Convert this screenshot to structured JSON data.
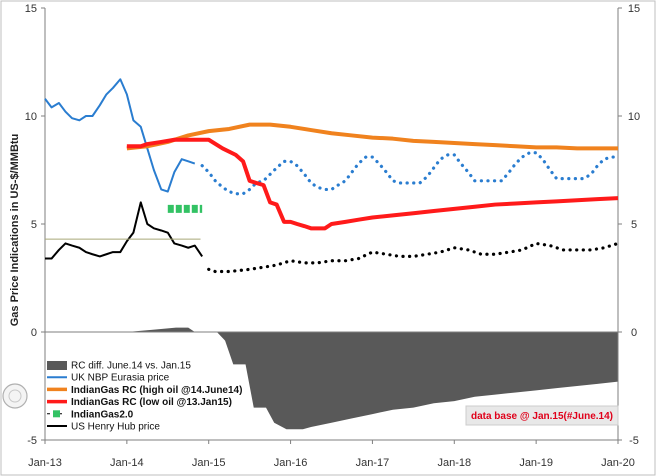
{
  "chart_data": {
    "type": "line",
    "title": "",
    "xlabel": "",
    "ylabel": "Gas Price Indications in US-$/MMBtu",
    "ylim": [
      -5,
      15
    ],
    "x_ticks": [
      "Jan-13",
      "Jan-14",
      "Jan-15",
      "Jan-16",
      "Jan-17",
      "Jan-18",
      "Jan-19",
      "Jan-20"
    ],
    "y_ticks": [
      -5,
      0,
      5,
      10,
      15
    ],
    "y_ticks_right": [
      -5,
      0,
      5,
      10,
      15
    ],
    "grid": false,
    "legend_position": "bottom-left",
    "note": "data base @ Jan.15(#June.14)",
    "series": [
      {
        "name": "RC diff. June.14 vs. Jan.15",
        "type": "area",
        "color": "#595959",
        "points": [
          [
            2014.0,
            0
          ],
          [
            2014.3,
            0.1
          ],
          [
            2014.6,
            0.2
          ],
          [
            2014.75,
            0.2
          ],
          [
            2014.83,
            0
          ],
          [
            2015.1,
            0
          ],
          [
            2015.2,
            -0.4
          ],
          [
            2015.3,
            -1.5
          ],
          [
            2015.45,
            -1.5
          ],
          [
            2015.55,
            -3.5
          ],
          [
            2015.7,
            -3.5
          ],
          [
            2015.8,
            -4.2
          ],
          [
            2015.95,
            -4.5
          ],
          [
            2016.15,
            -4.5
          ],
          [
            2016.25,
            -4.4
          ],
          [
            2016.5,
            -4.2
          ],
          [
            2016.75,
            -4.0
          ],
          [
            2017.0,
            -3.8
          ],
          [
            2017.25,
            -3.6
          ],
          [
            2017.5,
            -3.5
          ],
          [
            2017.75,
            -3.3
          ],
          [
            2018.0,
            -3.2
          ],
          [
            2018.25,
            -3.0
          ],
          [
            2018.5,
            -2.9
          ],
          [
            2018.75,
            -2.8
          ],
          [
            2019.0,
            -2.7
          ],
          [
            2019.25,
            -2.6
          ],
          [
            2019.5,
            -2.5
          ],
          [
            2019.75,
            -2.4
          ],
          [
            2020.0,
            -2.3
          ]
        ]
      },
      {
        "name": "UK NBP Eurasia price",
        "type": "line",
        "color": "#2a7dd0",
        "points": [
          [
            2013.0,
            10.8
          ],
          [
            2013.08,
            10.4
          ],
          [
            2013.17,
            10.6
          ],
          [
            2013.25,
            10.2
          ],
          [
            2013.33,
            9.9
          ],
          [
            2013.42,
            9.8
          ],
          [
            2013.5,
            10.0
          ],
          [
            2013.58,
            10.0
          ],
          [
            2013.67,
            10.5
          ],
          [
            2013.75,
            11.0
          ],
          [
            2013.83,
            11.3
          ],
          [
            2013.92,
            11.7
          ],
          [
            2014.0,
            11.0
          ],
          [
            2014.08,
            9.8
          ],
          [
            2014.17,
            9.5
          ],
          [
            2014.25,
            8.5
          ],
          [
            2014.33,
            7.5
          ],
          [
            2014.42,
            6.6
          ],
          [
            2014.5,
            6.5
          ],
          [
            2014.58,
            7.4
          ],
          [
            2014.67,
            8.0
          ],
          [
            2014.75,
            7.9
          ],
          [
            2014.83,
            7.8
          ]
        ]
      },
      {
        "name": "UK NBP Eurasia price forward",
        "type": "dotted",
        "color": "#2a7dd0",
        "points": [
          [
            2014.92,
            7.7
          ],
          [
            2015.0,
            7.4
          ],
          [
            2015.08,
            7.0
          ],
          [
            2015.17,
            6.7
          ],
          [
            2015.25,
            6.5
          ],
          [
            2015.33,
            6.4
          ],
          [
            2015.42,
            6.4
          ],
          [
            2015.5,
            6.6
          ],
          [
            2015.58,
            6.9
          ],
          [
            2015.67,
            7.0
          ],
          [
            2015.75,
            7.3
          ],
          [
            2015.83,
            7.6
          ],
          [
            2015.92,
            7.9
          ],
          [
            2016.0,
            7.9
          ],
          [
            2016.08,
            7.7
          ],
          [
            2016.17,
            7.3
          ],
          [
            2016.25,
            6.9
          ],
          [
            2016.33,
            6.7
          ],
          [
            2016.42,
            6.6
          ],
          [
            2016.5,
            6.6
          ],
          [
            2016.58,
            6.8
          ],
          [
            2016.67,
            7.0
          ],
          [
            2016.75,
            7.4
          ],
          [
            2016.83,
            7.8
          ],
          [
            2016.92,
            8.1
          ],
          [
            2017.0,
            8.1
          ],
          [
            2017.08,
            7.8
          ],
          [
            2017.17,
            7.4
          ],
          [
            2017.25,
            7.0
          ],
          [
            2017.33,
            6.9
          ],
          [
            2017.42,
            6.9
          ],
          [
            2017.5,
            6.9
          ],
          [
            2017.58,
            6.9
          ],
          [
            2017.67,
            7.2
          ],
          [
            2017.75,
            7.6
          ],
          [
            2017.83,
            8.0
          ],
          [
            2017.92,
            8.2
          ],
          [
            2018.0,
            8.2
          ],
          [
            2018.08,
            7.8
          ],
          [
            2018.17,
            7.4
          ],
          [
            2018.25,
            7.0
          ],
          [
            2018.33,
            7.0
          ],
          [
            2018.42,
            7.0
          ],
          [
            2018.5,
            7.0
          ],
          [
            2018.58,
            7.0
          ],
          [
            2018.67,
            7.4
          ],
          [
            2018.75,
            7.8
          ],
          [
            2018.83,
            8.1
          ],
          [
            2018.92,
            8.3
          ],
          [
            2019.0,
            8.3
          ],
          [
            2019.08,
            8.0
          ],
          [
            2019.17,
            7.5
          ],
          [
            2019.25,
            7.1
          ],
          [
            2019.33,
            7.1
          ],
          [
            2019.42,
            7.1
          ],
          [
            2019.5,
            7.1
          ],
          [
            2019.58,
            7.1
          ],
          [
            2019.67,
            7.3
          ],
          [
            2019.75,
            7.7
          ],
          [
            2019.83,
            8.0
          ],
          [
            2019.92,
            8.1
          ],
          [
            2020.0,
            8.1
          ]
        ]
      },
      {
        "name": "IndianGas RC (high oil @14.June14)",
        "type": "line",
        "color": "#f0821e",
        "points": [
          [
            2014.0,
            8.5
          ],
          [
            2014.25,
            8.6
          ],
          [
            2014.5,
            8.8
          ],
          [
            2014.75,
            9.1
          ],
          [
            2015.0,
            9.3
          ],
          [
            2015.25,
            9.4
          ],
          [
            2015.5,
            9.6
          ],
          [
            2015.75,
            9.6
          ],
          [
            2016.0,
            9.5
          ],
          [
            2016.25,
            9.35
          ],
          [
            2016.5,
            9.2
          ],
          [
            2016.75,
            9.1
          ],
          [
            2017.0,
            9.0
          ],
          [
            2017.25,
            8.95
          ],
          [
            2017.5,
            8.85
          ],
          [
            2017.75,
            8.8
          ],
          [
            2018.0,
            8.75
          ],
          [
            2018.25,
            8.7
          ],
          [
            2018.5,
            8.65
          ],
          [
            2018.75,
            8.6
          ],
          [
            2019.0,
            8.55
          ],
          [
            2019.25,
            8.55
          ],
          [
            2019.5,
            8.5
          ],
          [
            2019.75,
            8.5
          ],
          [
            2020.0,
            8.5
          ]
        ]
      },
      {
        "name": "IndianGas RC (low oil @13.Jan15)",
        "type": "line",
        "color": "#ff1a1a",
        "points": [
          [
            2014.0,
            8.6
          ],
          [
            2014.17,
            8.6
          ],
          [
            2014.25,
            8.7
          ],
          [
            2014.42,
            8.8
          ],
          [
            2014.58,
            8.9
          ],
          [
            2014.75,
            8.9
          ],
          [
            2014.92,
            8.9
          ],
          [
            2015.0,
            8.9
          ],
          [
            2015.17,
            8.5
          ],
          [
            2015.33,
            8.2
          ],
          [
            2015.42,
            7.9
          ],
          [
            2015.5,
            7.0
          ],
          [
            2015.58,
            6.9
          ],
          [
            2015.67,
            6.8
          ],
          [
            2015.75,
            6.0
          ],
          [
            2015.83,
            5.9
          ],
          [
            2015.92,
            5.1
          ],
          [
            2016.0,
            5.1
          ],
          [
            2016.08,
            5.0
          ],
          [
            2016.17,
            4.9
          ],
          [
            2016.25,
            4.8
          ],
          [
            2016.42,
            4.8
          ],
          [
            2016.5,
            5.0
          ],
          [
            2016.67,
            5.1
          ],
          [
            2016.83,
            5.2
          ],
          [
            2017.0,
            5.3
          ],
          [
            2017.25,
            5.4
          ],
          [
            2017.5,
            5.5
          ],
          [
            2017.75,
            5.6
          ],
          [
            2018.0,
            5.7
          ],
          [
            2018.25,
            5.8
          ],
          [
            2018.5,
            5.9
          ],
          [
            2018.75,
            5.95
          ],
          [
            2019.0,
            6.0
          ],
          [
            2019.25,
            6.05
          ],
          [
            2019.5,
            6.1
          ],
          [
            2019.75,
            6.15
          ],
          [
            2020.0,
            6.2
          ]
        ]
      },
      {
        "name": "IndianGas2.0",
        "type": "line",
        "color": "#33c264",
        "points": [
          [
            2014.5,
            5.7
          ],
          [
            2014.92,
            5.7
          ]
        ]
      },
      {
        "name": "US Henry Hub price",
        "type": "line",
        "color": "#000000",
        "points": [
          [
            2013.0,
            3.4
          ],
          [
            2013.08,
            3.4
          ],
          [
            2013.17,
            3.8
          ],
          [
            2013.25,
            4.1
          ],
          [
            2013.33,
            4.0
          ],
          [
            2013.42,
            3.9
          ],
          [
            2013.5,
            3.7
          ],
          [
            2013.58,
            3.6
          ],
          [
            2013.67,
            3.5
          ],
          [
            2013.75,
            3.6
          ],
          [
            2013.83,
            3.7
          ],
          [
            2013.92,
            3.7
          ],
          [
            2014.0,
            4.2
          ],
          [
            2014.08,
            4.6
          ],
          [
            2014.17,
            6.0
          ],
          [
            2014.25,
            5.0
          ],
          [
            2014.33,
            4.8
          ],
          [
            2014.42,
            4.7
          ],
          [
            2014.5,
            4.6
          ],
          [
            2014.58,
            4.1
          ],
          [
            2014.67,
            4.0
          ],
          [
            2014.75,
            3.9
          ],
          [
            2014.83,
            4.0
          ],
          [
            2014.92,
            3.5
          ]
        ]
      },
      {
        "name": "US Henry Hub price forward",
        "type": "dotted",
        "color": "#000000",
        "points": [
          [
            2015.0,
            2.9
          ],
          [
            2015.08,
            2.8
          ],
          [
            2015.25,
            2.8
          ],
          [
            2015.5,
            2.9
          ],
          [
            2015.67,
            3.0
          ],
          [
            2015.83,
            3.1
          ],
          [
            2016.0,
            3.3
          ],
          [
            2016.17,
            3.2
          ],
          [
            2016.33,
            3.2
          ],
          [
            2016.5,
            3.3
          ],
          [
            2016.67,
            3.3
          ],
          [
            2016.83,
            3.4
          ],
          [
            2017.0,
            3.7
          ],
          [
            2017.17,
            3.6
          ],
          [
            2017.33,
            3.5
          ],
          [
            2017.5,
            3.5
          ],
          [
            2017.67,
            3.6
          ],
          [
            2017.83,
            3.7
          ],
          [
            2018.0,
            3.9
          ],
          [
            2018.17,
            3.8
          ],
          [
            2018.33,
            3.6
          ],
          [
            2018.5,
            3.6
          ],
          [
            2018.67,
            3.7
          ],
          [
            2018.83,
            3.8
          ],
          [
            2019.0,
            4.1
          ],
          [
            2019.17,
            4.0
          ],
          [
            2019.33,
            3.8
          ],
          [
            2019.5,
            3.8
          ],
          [
            2019.67,
            3.8
          ],
          [
            2019.83,
            3.9
          ],
          [
            2020.0,
            4.1
          ]
        ]
      },
      {
        "name": "Henry Hub average",
        "type": "thin",
        "color": "#a8a878",
        "points": [
          [
            2013.0,
            4.3
          ],
          [
            2014.9,
            4.3
          ]
        ]
      }
    ]
  },
  "legend": [
    {
      "label": "RC diff. June.14 vs. Jan.15",
      "kind": "box",
      "color": "#595959",
      "bold": false
    },
    {
      "label": "UK NBP Eurasia price",
      "kind": "line",
      "color": "#2a7dd0",
      "bold": false
    },
    {
      "label": "IndianGas RC (high oil @14.June14)",
      "kind": "line",
      "color": "#f0821e",
      "bold": true
    },
    {
      "label": "IndianGas RC (low oil @13.Jan15)",
      "kind": "line",
      "color": "#ff1a1a",
      "bold": true
    },
    {
      "label": "IndianGas2.0",
      "kind": "marker",
      "color": "#33c264",
      "bold": true
    },
    {
      "label": "US Henry Hub price",
      "kind": "line",
      "color": "#000000",
      "bold": false
    }
  ]
}
